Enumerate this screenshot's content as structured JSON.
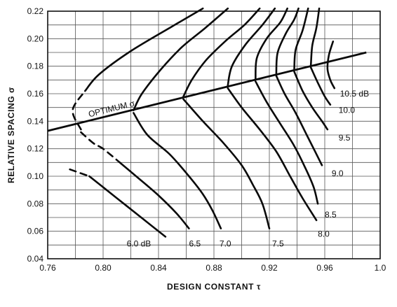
{
  "chart_data": {
    "type": "line",
    "title": "",
    "xlabel": "DESIGN CONSTANT τ",
    "ylabel": "RELATIVE SPACING σ",
    "xlim": [
      0.76,
      1.0
    ],
    "ylim": [
      0.04,
      0.22
    ],
    "x_ticks": [
      "0.76",
      "0.80",
      "0.84",
      "0.88",
      "0.92",
      "0.96",
      "1.0"
    ],
    "y_ticks": [
      "0.04",
      "0.06",
      "0.08",
      "0.10",
      "0.12",
      "0.14",
      "0.16",
      "0.18",
      "0.20",
      "0.22"
    ],
    "x_minor_step": 0.02,
    "y_minor_step": 0.01,
    "grid": true,
    "optimum_line": {
      "label": "OPTIMUM σ",
      "points": [
        [
          0.76,
          0.133
        ],
        [
          0.99,
          0.19
        ]
      ]
    },
    "series": [
      {
        "name": "6.0 dB",
        "label": "6.0 dB",
        "label_at": [
          0.817,
          0.051
        ],
        "dashed_until": 1,
        "points": [
          [
            0.776,
            0.105
          ],
          [
            0.79,
            0.1
          ],
          [
            0.8,
            0.092
          ],
          [
            0.815,
            0.08
          ],
          [
            0.83,
            0.068
          ],
          [
            0.845,
            0.056
          ]
        ]
      },
      {
        "name": "6.5",
        "label": "6.5",
        "label_at": [
          0.862,
          0.051
        ],
        "dashed_until": 2,
        "points": [
          [
            0.784,
            0.134
          ],
          [
            0.778,
            0.148
          ],
          [
            0.787,
            0.162
          ],
          [
            0.797,
            0.174
          ],
          [
            0.82,
            0.191
          ],
          [
            0.85,
            0.209
          ],
          [
            0.872,
            0.222
          ]
        ],
        "lower": [
          [
            0.784,
            0.132
          ],
          [
            0.793,
            0.124
          ],
          [
            0.8,
            0.12
          ],
          [
            0.812,
            0.11
          ],
          [
            0.825,
            0.099
          ],
          [
            0.84,
            0.086
          ],
          [
            0.853,
            0.073
          ],
          [
            0.862,
            0.062
          ]
        ]
      },
      {
        "name": "7.0",
        "label": "7.0",
        "label_at": [
          0.884,
          0.051
        ],
        "points": [
          [
            0.822,
            0.148
          ],
          [
            0.828,
            0.16
          ],
          [
            0.842,
            0.178
          ],
          [
            0.857,
            0.194
          ],
          [
            0.874,
            0.208
          ],
          [
            0.89,
            0.222
          ]
        ],
        "lower": [
          [
            0.822,
            0.146
          ],
          [
            0.832,
            0.13
          ],
          [
            0.848,
            0.116
          ],
          [
            0.862,
            0.1
          ],
          [
            0.872,
            0.087
          ],
          [
            0.879,
            0.075
          ],
          [
            0.885,
            0.062
          ]
        ]
      },
      {
        "name": "7.5",
        "label": "7.5",
        "label_at": [
          0.922,
          0.051
        ],
        "points": [
          [
            0.858,
            0.158
          ],
          [
            0.864,
            0.17
          ],
          [
            0.874,
            0.184
          ],
          [
            0.888,
            0.198
          ],
          [
            0.902,
            0.21
          ],
          [
            0.913,
            0.222
          ]
        ],
        "lower": [
          [
            0.858,
            0.156
          ],
          [
            0.872,
            0.14
          ],
          [
            0.887,
            0.124
          ],
          [
            0.9,
            0.108
          ],
          [
            0.908,
            0.094
          ],
          [
            0.915,
            0.08
          ],
          [
            0.92,
            0.062
          ]
        ]
      },
      {
        "name": "8.0",
        "label": "8.0",
        "label_at": [
          0.955,
          0.058
        ],
        "points": [
          [
            0.89,
            0.166
          ],
          [
            0.893,
            0.18
          ],
          [
            0.903,
            0.196
          ],
          [
            0.915,
            0.21
          ],
          [
            0.924,
            0.222
          ]
        ],
        "lower": [
          [
            0.89,
            0.164
          ],
          [
            0.9,
            0.15
          ],
          [
            0.913,
            0.134
          ],
          [
            0.925,
            0.118
          ],
          [
            0.935,
            0.1
          ],
          [
            0.944,
            0.084
          ],
          [
            0.954,
            0.068
          ]
        ]
      },
      {
        "name": "8.5",
        "label": "8.5",
        "label_at": [
          0.96,
          0.072
        ],
        "points": [
          [
            0.91,
            0.171
          ],
          [
            0.911,
            0.186
          ],
          [
            0.918,
            0.2
          ],
          [
            0.928,
            0.212
          ],
          [
            0.933,
            0.222
          ]
        ],
        "lower": [
          [
            0.91,
            0.169
          ],
          [
            0.918,
            0.154
          ],
          [
            0.928,
            0.138
          ],
          [
            0.938,
            0.122
          ],
          [
            0.946,
            0.106
          ],
          [
            0.952,
            0.092
          ],
          [
            0.955,
            0.08
          ]
        ]
      },
      {
        "name": "9.0",
        "label": "9.0",
        "label_at": [
          0.965,
          0.102
        ],
        "points": [
          [
            0.925,
            0.175
          ],
          [
            0.926,
            0.19
          ],
          [
            0.932,
            0.204
          ],
          [
            0.938,
            0.214
          ],
          [
            0.941,
            0.222
          ]
        ],
        "lower": [
          [
            0.925,
            0.173
          ],
          [
            0.931,
            0.16
          ],
          [
            0.939,
            0.146
          ],
          [
            0.947,
            0.13
          ],
          [
            0.953,
            0.118
          ],
          [
            0.958,
            0.108
          ]
        ]
      },
      {
        "name": "9.5",
        "label": "9.5",
        "label_at": [
          0.97,
          0.128
        ],
        "points": [
          [
            0.938,
            0.178
          ],
          [
            0.939,
            0.192
          ],
          [
            0.944,
            0.206
          ],
          [
            0.948,
            0.222
          ]
        ],
        "lower": [
          [
            0.938,
            0.176
          ],
          [
            0.944,
            0.162
          ],
          [
            0.951,
            0.15
          ],
          [
            0.958,
            0.14
          ],
          [
            0.962,
            0.134
          ]
        ]
      },
      {
        "name": "10.0",
        "label": "10.0",
        "label_at": [
          0.97,
          0.148
        ],
        "points": [
          [
            0.95,
            0.181
          ],
          [
            0.951,
            0.195
          ],
          [
            0.954,
            0.208
          ],
          [
            0.956,
            0.222
          ]
        ],
        "lower": [
          [
            0.95,
            0.179
          ],
          [
            0.955,
            0.168
          ],
          [
            0.96,
            0.158
          ],
          [
            0.964,
            0.152
          ]
        ]
      },
      {
        "name": "10.5 dB",
        "label": "10.5 dB",
        "label_at": [
          0.971,
          0.16
        ],
        "points": [
          [
            0.966,
            0.198
          ],
          [
            0.963,
            0.188
          ],
          [
            0.962,
            0.178
          ],
          [
            0.964,
            0.17
          ],
          [
            0.967,
            0.164
          ]
        ]
      }
    ]
  }
}
